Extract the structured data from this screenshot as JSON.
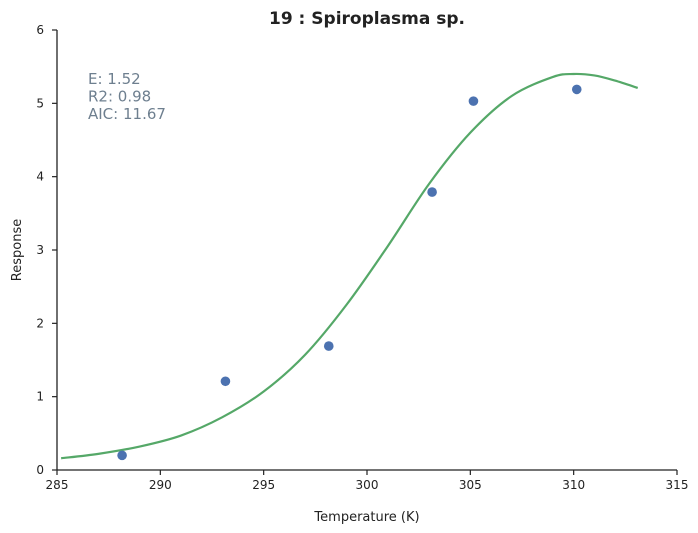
{
  "chart_data": {
    "type": "scatter",
    "title": "19 : Spiroplasma sp.",
    "xlabel": "Temperature (K)",
    "ylabel": "Response",
    "xlim": [
      285,
      315
    ],
    "ylim": [
      0,
      6
    ],
    "xticks": [
      285,
      290,
      295,
      300,
      305,
      310,
      315
    ],
    "yticks": [
      0,
      1,
      2,
      3,
      4,
      5,
      6
    ],
    "grid": false,
    "annotations": [
      "E:  1.52",
      "R2:  0.98",
      "AIC: 11.67"
    ],
    "colors": {
      "points": "#4c72b0",
      "fit": "#55a868",
      "annotation": "#6e7f8f"
    },
    "series": [
      {
        "kind": "points",
        "x": [
          288.15,
          293.15,
          298.15,
          303.15,
          305.15,
          310.15
        ],
        "y": [
          0.2,
          1.21,
          1.69,
          3.79,
          5.03,
          5.19
        ]
      },
      {
        "kind": "fit-line",
        "x": [
          285.2,
          287,
          289,
          291,
          293,
          295,
          297,
          299,
          301,
          303,
          305,
          307,
          309,
          310,
          311,
          312,
          313.1
        ],
        "y": [
          0.16,
          0.22,
          0.32,
          0.47,
          0.72,
          1.07,
          1.57,
          2.25,
          3.05,
          3.9,
          4.6,
          5.1,
          5.36,
          5.4,
          5.38,
          5.31,
          5.21
        ]
      }
    ]
  }
}
